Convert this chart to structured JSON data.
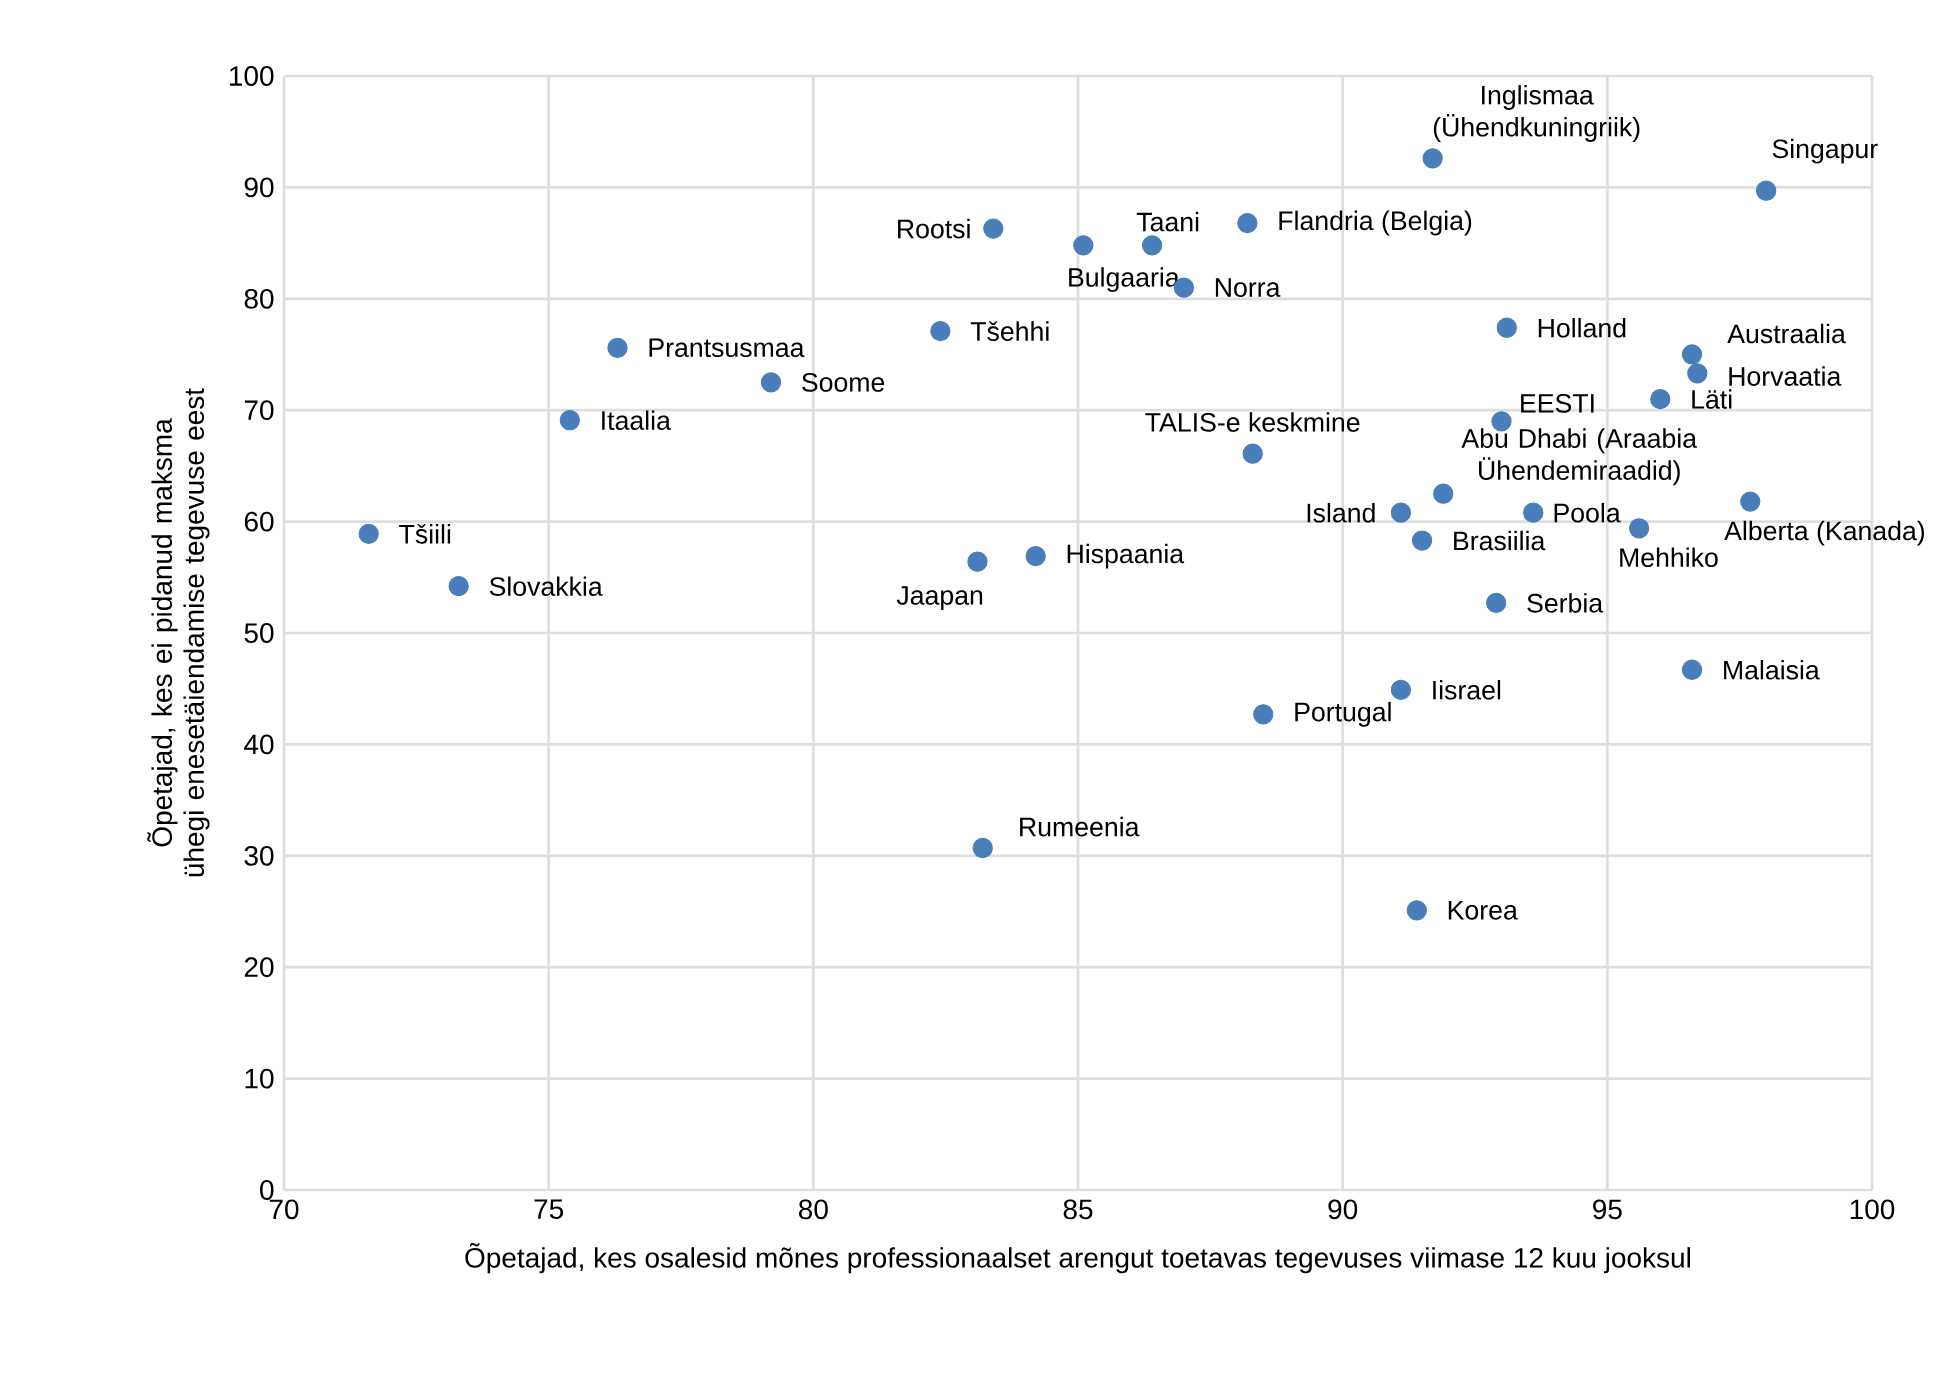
{
  "chart_data": {
    "type": "scatter",
    "xlabel": "Õpetajad, kes osalesid mõnes professionaalset arengut toetavas tegevuses viimase 12 kuu jooksul",
    "ylabel": "Õpetajad, kes ei pidanud maksma ühegi enesetäiendamise tegevuse eest",
    "xlim": [
      70,
      100
    ],
    "ylim": [
      0,
      100
    ],
    "xticks": [
      70,
      75,
      80,
      85,
      90,
      95,
      100
    ],
    "yticks": [
      0,
      10,
      20,
      30,
      40,
      50,
      60,
      70,
      80,
      90,
      100
    ],
    "grid": true,
    "marker": "circle",
    "series": [
      {
        "color": "#4a7ebb",
        "x": [
          71.6,
          73.3,
          75.4,
          76.3,
          79.2,
          82.4,
          83.4,
          85.1,
          83.1,
          84.2,
          83.2,
          86.4,
          87.0,
          88.2,
          88.3,
          88.5,
          91.7,
          91.1,
          91.5,
          91.1,
          91.4,
          91.9,
          93.0,
          92.9,
          93.1,
          93.6,
          95.6,
          96.0,
          96.6,
          96.7,
          96.6,
          97.7,
          98.0
        ],
        "values": [
          58.9,
          54.2,
          69.1,
          75.6,
          72.5,
          77.1,
          86.3,
          84.8,
          56.4,
          56.9,
          30.7,
          84.8,
          81.0,
          86.8,
          66.1,
          42.7,
          92.6,
          60.8,
          58.3,
          44.9,
          25.1,
          62.5,
          69.0,
          52.7,
          77.4,
          60.8,
          59.4,
          71.0,
          75.0,
          73.3,
          46.7,
          61.8,
          89.7
        ]
      }
    ],
    "annotations": [
      {
        "text": "Tšiili",
        "x": 71.6,
        "y": 58.9
      },
      {
        "text": "Slovakkia",
        "x": 73.3,
        "y": 54.2
      },
      {
        "text": "Itaalia",
        "x": 75.4,
        "y": 69.1
      },
      {
        "text": "Prantsusmaa",
        "x": 76.3,
        "y": 75.6
      },
      {
        "text": "Soome",
        "x": 79.2,
        "y": 72.5
      },
      {
        "text": "Tšehhi",
        "x": 82.4,
        "y": 77.1
      },
      {
        "text": "Rootsi",
        "x": 83.4,
        "y": 86.3
      },
      {
        "text": "Bulgaaria",
        "x": 85.1,
        "y": 84.8
      },
      {
        "text": "Jaapan",
        "x": 83.1,
        "y": 56.4
      },
      {
        "text": "Hispaania",
        "x": 84.2,
        "y": 56.9
      },
      {
        "text": "Rumeenia",
        "x": 83.2,
        "y": 30.7
      },
      {
        "text": "Taani",
        "x": 86.4,
        "y": 84.8
      },
      {
        "text": "Norra",
        "x": 87.0,
        "y": 81.0
      },
      {
        "text": "Flandria (Belgia)",
        "x": 88.2,
        "y": 86.8
      },
      {
        "text": "TALIS-e keskmine",
        "x": 88.3,
        "y": 66.1
      },
      {
        "text": "Portugal",
        "x": 88.5,
        "y": 42.7
      },
      {
        "text": "Inglismaa (Ühendkuningriik)",
        "x": 91.7,
        "y": 92.6
      },
      {
        "text": "Island",
        "x": 91.1,
        "y": 60.8
      },
      {
        "text": "Brasiilia",
        "x": 91.5,
        "y": 58.3
      },
      {
        "text": "Iisrael",
        "x": 91.1,
        "y": 44.9
      },
      {
        "text": "Korea",
        "x": 91.4,
        "y": 25.1
      },
      {
        "text": "Abu Dhabi (Araabia Ühendemiraadid)",
        "x": 91.9,
        "y": 62.5
      },
      {
        "text": "EESTI",
        "x": 93.0,
        "y": 69.0
      },
      {
        "text": "Serbia",
        "x": 92.9,
        "y": 52.7
      },
      {
        "text": "Holland",
        "x": 93.1,
        "y": 77.4
      },
      {
        "text": "Poola",
        "x": 93.6,
        "y": 60.8
      },
      {
        "text": "Mehhiko",
        "x": 95.6,
        "y": 59.4
      },
      {
        "text": "Läti",
        "x": 96.0,
        "y": 71.0
      },
      {
        "text": "Austraalia",
        "x": 96.6,
        "y": 75.0
      },
      {
        "text": "Horvaatia",
        "x": 96.7,
        "y": 73.3
      },
      {
        "text": "Malaisia",
        "x": 96.6,
        "y": 46.7
      },
      {
        "text": "Alberta (Kanada)",
        "x": 97.7,
        "y": 61.8
      },
      {
        "text": "Singapur",
        "x": 98.0,
        "y": 89.7
      }
    ]
  }
}
